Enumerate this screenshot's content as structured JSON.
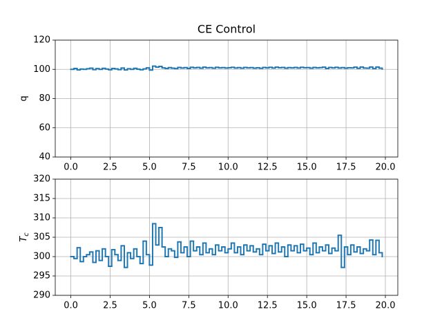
{
  "chart_data": [
    {
      "type": "line",
      "title": "CE Control",
      "ylabel": "q",
      "drawstyle": "steps-post",
      "grid": true,
      "x": [
        0,
        0.2,
        0.4,
        0.6,
        0.8,
        1,
        1.2,
        1.4,
        1.6,
        1.8,
        2,
        2.2,
        2.4,
        2.6,
        2.8,
        3,
        3.2,
        3.4,
        3.6,
        3.8,
        4,
        4.2,
        4.4,
        4.6,
        4.8,
        5,
        5.2,
        5.4,
        5.6,
        5.8,
        6,
        6.2,
        6.4,
        6.6,
        6.8,
        7,
        7.2,
        7.4,
        7.6,
        7.8,
        8,
        8.2,
        8.4,
        8.6,
        8.8,
        9,
        9.2,
        9.4,
        9.6,
        9.8,
        10,
        10.2,
        10.4,
        10.6,
        10.8,
        11,
        11.2,
        11.4,
        11.6,
        11.8,
        12,
        12.2,
        12.4,
        12.6,
        12.8,
        13,
        13.2,
        13.4,
        13.6,
        13.8,
        14,
        14.2,
        14.4,
        14.6,
        14.8,
        15,
        15.2,
        15.4,
        15.6,
        15.8,
        16,
        16.2,
        16.4,
        16.6,
        16.8,
        17,
        17.2,
        17.4,
        17.6,
        17.8,
        18,
        18.2,
        18.4,
        18.6,
        18.8,
        19,
        19.2,
        19.4,
        19.6,
        19.8
      ],
      "series": [
        {
          "color": "#1f77b4",
          "values": [
            100,
            100.6,
            99.6,
            100.2,
            100,
            100.4,
            100.8,
            99.8,
            100.5,
            100,
            100.7,
            100.2,
            99.7,
            100.6,
            100.3,
            99.8,
            100.9,
            99.6,
            100.4,
            100,
            100.7,
            100.1,
            99.7,
            100.3,
            101,
            99.5,
            102.2,
            101.5,
            102,
            101,
            100.6,
            101.2,
            100.8,
            100.5,
            101.3,
            100.9,
            101.2,
            100.6,
            101.4,
            101,
            101.3,
            100.8,
            101.5,
            101,
            101.2,
            100.8,
            101.4,
            101,
            101.2,
            100.9,
            101.1,
            101.4,
            100.9,
            101.2,
            100.8,
            101.3,
            101,
            101.2,
            100.8,
            101.1,
            100.7,
            101.3,
            101,
            101.4,
            100.9,
            101.5,
            101.1,
            101.3,
            100.8,
            101.2,
            101,
            101.3,
            100.9,
            101.4,
            101.1,
            101.2,
            100.8,
            101.3,
            101,
            101.2,
            101.5,
            100.6,
            101.3,
            101,
            101.4,
            100.9,
            101.2,
            100.8,
            101.1,
            101,
            101.5,
            100.7,
            101.6,
            100.9,
            100.8,
            101.6,
            100.5,
            101.6,
            100.8,
            100.2
          ]
        }
      ],
      "xlim": [
        -0.99,
        20.79
      ],
      "xticks": [
        {
          "value": 0,
          "label": "0.0"
        },
        2.5,
        {
          "value": 5,
          "label": "5.0"
        },
        7.5,
        {
          "value": 10,
          "label": "10.0"
        },
        12.5,
        {
          "value": 15,
          "label": "15.0"
        },
        17.5,
        {
          "value": 20,
          "label": "20.0"
        }
      ],
      "ylim": [
        40,
        120
      ],
      "yticks": [
        40,
        60,
        80,
        100,
        120
      ]
    },
    {
      "type": "line",
      "ylabel": "T",
      "ylabel_sub": "c",
      "drawstyle": "steps-post",
      "grid": true,
      "x": [
        0,
        0.2,
        0.4,
        0.6,
        0.8,
        1,
        1.2,
        1.4,
        1.6,
        1.8,
        2,
        2.2,
        2.4,
        2.6,
        2.8,
        3,
        3.2,
        3.4,
        3.6,
        3.8,
        4,
        4.2,
        4.4,
        4.6,
        4.8,
        5,
        5.2,
        5.4,
        5.6,
        5.8,
        6,
        6.2,
        6.4,
        6.6,
        6.8,
        7,
        7.2,
        7.4,
        7.6,
        7.8,
        8,
        8.2,
        8.4,
        8.6,
        8.8,
        9,
        9.2,
        9.4,
        9.6,
        9.8,
        10,
        10.2,
        10.4,
        10.6,
        10.8,
        11,
        11.2,
        11.4,
        11.6,
        11.8,
        12,
        12.2,
        12.4,
        12.6,
        12.8,
        13,
        13.2,
        13.4,
        13.6,
        13.8,
        14,
        14.2,
        14.4,
        14.6,
        14.8,
        15,
        15.2,
        15.4,
        15.6,
        15.8,
        16,
        16.2,
        16.4,
        16.6,
        16.8,
        17,
        17.2,
        17.4,
        17.6,
        17.8,
        18,
        18.2,
        18.4,
        18.6,
        18.8,
        19,
        19.2,
        19.4,
        19.6,
        19.8
      ],
      "series": [
        {
          "color": "#1f77b4",
          "values": [
            300,
            299.5,
            302.3,
            298.7,
            300,
            300.5,
            301.2,
            298.5,
            301.5,
            299,
            302,
            300,
            297.5,
            301.8,
            300.5,
            299,
            302.8,
            297.2,
            301,
            299.5,
            302,
            300,
            298.2,
            304,
            300.5,
            297.8,
            308.5,
            303,
            307.5,
            302.5,
            300,
            302,
            301.5,
            299.8,
            303.8,
            301,
            302.5,
            300,
            304,
            301.5,
            302.5,
            300.5,
            303.5,
            301,
            302,
            300.5,
            303,
            301.5,
            302.5,
            301,
            302,
            303.5,
            301,
            302.5,
            300.5,
            303,
            301.5,
            302.8,
            301.2,
            302,
            300.5,
            303.2,
            301.5,
            302.8,
            300.8,
            303.5,
            301.2,
            302.5,
            300,
            303,
            301.5,
            302.8,
            301,
            303.2,
            301.5,
            302.2,
            300.5,
            303.5,
            301,
            302.5,
            301.5,
            303,
            300.8,
            302.2,
            301.5,
            305.5,
            297.2,
            302.5,
            300.5,
            303,
            301.2,
            302.5,
            300.8,
            302,
            301.5,
            304.3,
            300.5,
            304.2,
            301,
            300
          ]
        }
      ],
      "xlim": [
        -0.99,
        20.79
      ],
      "xticks": [
        {
          "value": 0,
          "label": "0.0"
        },
        2.5,
        {
          "value": 5,
          "label": "5.0"
        },
        7.5,
        {
          "value": 10,
          "label": "10.0"
        },
        12.5,
        {
          "value": 15,
          "label": "15.0"
        },
        17.5,
        {
          "value": 20,
          "label": "20.0"
        }
      ],
      "ylim": [
        290,
        320
      ],
      "yticks": [
        290,
        295,
        300,
        305,
        310,
        315,
        320
      ]
    }
  ]
}
